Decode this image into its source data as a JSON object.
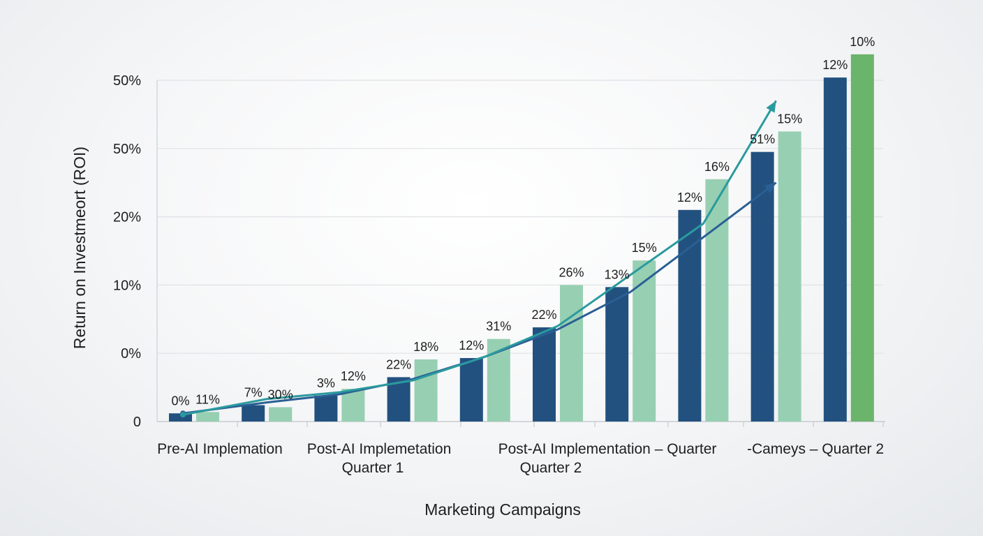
{
  "chart_data": {
    "type": "bar",
    "title": "",
    "xlabel": "Marketing Campaigns",
    "ylabel": "Return on Investmeort (ROI)",
    "y_tick_labels": [
      "0",
      "0%",
      "10%",
      "20%",
      "50%",
      "50%"
    ],
    "x_tick_labels": [
      {
        "lines": [
          "Pre-AI Implemation"
        ]
      },
      {
        "lines": [
          "Post-AI Implemetation",
          "Quarter 1"
        ]
      },
      {
        "lines": [
          "Post-AI Implementation – Quarter",
          "Quarter 2"
        ]
      },
      {
        "lines": [
          "-Cameys – Quarter 2"
        ]
      }
    ],
    "ylim": [
      0,
      5
    ],
    "grid": true,
    "legend": "none",
    "groups": 10,
    "series": [
      {
        "color": "#22517f",
        "values": [
          0.12,
          0.24,
          0.38,
          0.65,
          0.93,
          1.38,
          1.97,
          3.1,
          3.95,
          5.0
        ],
        "labels": [
          "0%",
          "7%",
          "3%",
          "22%",
          "12%",
          "22%",
          "13%",
          "12%",
          "51%",
          ""
        ]
      },
      {
        "color": "#97cfb2",
        "values": [
          0.14,
          0.21,
          0.48,
          0.91,
          1.21,
          2.0,
          2.36,
          3.55,
          4.25,
          5.0
        ],
        "labels": [
          "11%",
          "30%",
          "12%",
          "18%",
          "31%",
          "26%",
          "15%",
          "16%",
          "15%",
          ""
        ]
      }
    ],
    "top_bars": [
      {
        "group": 9,
        "series": 0,
        "value": 5.04,
        "label": "12%",
        "color": "#22517f"
      },
      {
        "group": 9,
        "series": 1,
        "value": 5.38,
        "label": "10%",
        "color": "#6ab46c"
      }
    ],
    "trend_lines": [
      {
        "color": "#2a5f95",
        "values": [
          0.12,
          0.28,
          0.4,
          0.62,
          0.95,
          1.35,
          1.9,
          2.7,
          3.5
        ],
        "arrow": true
      },
      {
        "color": "#2a9a9e",
        "values": [
          0.1,
          0.33,
          0.43,
          0.6,
          0.95,
          1.4,
          2.15,
          2.9,
          4.7
        ],
        "arrow": true
      }
    ]
  }
}
